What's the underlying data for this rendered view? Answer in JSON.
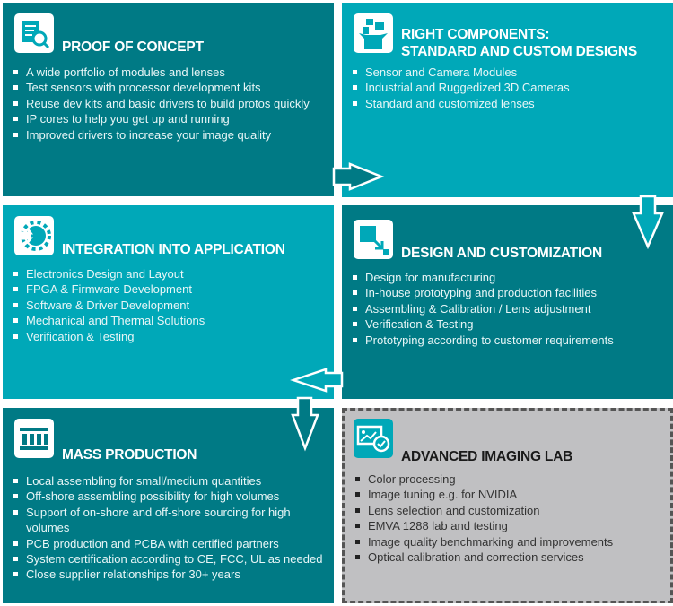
{
  "colors": {
    "dark_teal": "#007a85",
    "light_teal": "#00a8b8",
    "lab_gray": "#c0c0c2"
  },
  "panels": [
    {
      "id": "proof",
      "icon": "document-search-icon",
      "title": "PROOF OF CONCEPT",
      "items": [
        "A wide portfolio of modules and lenses",
        "Test sensors with processor development kits",
        "Reuse dev kits and basic drivers to build protos quickly",
        "IP cores to help you get up and running",
        "Improved drivers to increase your image quality"
      ]
    },
    {
      "id": "components",
      "icon": "box-components-icon",
      "title_lines": [
        "RIGHT COMPONENTS:",
        "STANDARD AND CUSTOM DESIGNS"
      ],
      "items": [
        "Sensor and Camera Modules",
        "Industrial and Ruggedized 3D Cameras",
        "Standard and customized lenses"
      ]
    },
    {
      "id": "integration",
      "icon": "gear-plug-icon",
      "title": "INTEGRATION INTO APPLICATION",
      "items": [
        "Electronics Design and Layout",
        "FPGA & Firmware Development",
        "Software & Driver Development",
        "Mechanical and Thermal Solutions",
        "Verification & Testing"
      ]
    },
    {
      "id": "design",
      "icon": "resize-arrow-icon",
      "title": "DESIGN AND CUSTOMIZATION",
      "items": [
        "Design for manufacturing",
        "In-house prototyping and production facilities",
        "Assembling & Calibration / Lens adjustment",
        "Verification & Testing",
        "Prototyping according to customer requirements"
      ]
    },
    {
      "id": "mass",
      "icon": "production-line-icon",
      "title": "MASS PRODUCTION",
      "items": [
        "Local assembling for small/medium quantities",
        "Off-shore assembling possibility for high volumes",
        "Support of on-shore and off-shore sourcing for high volumes",
        "PCB production and PCBA with certified partners",
        "System certification according to CE, FCC, UL as needed",
        "Close supplier relationships for 30+ years"
      ]
    },
    {
      "id": "lab",
      "icon": "image-certified-icon",
      "title": "ADVANCED IMAGING LAB",
      "items": [
        "Color processing",
        "Image tuning e.g. for NVIDIA",
        "Lens selection and customization",
        "EMVA 1288 lab and testing",
        "Image quality benchmarking and improvements",
        "Optical calibration and correction services"
      ]
    }
  ]
}
